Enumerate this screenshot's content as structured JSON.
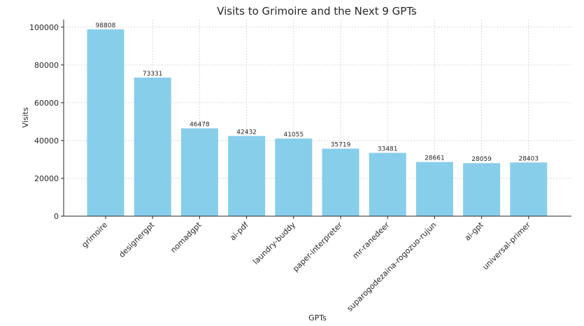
{
  "chart_data": {
    "type": "bar",
    "title": "Visits to Grimoire and the Next 9 GPTs",
    "xlabel": "GPTs",
    "ylabel": "Visits",
    "categories": [
      "grimoire",
      "designergpt",
      "nomadgpt",
      "ai-pdf",
      "laundry-buddy",
      "paper-interpreter",
      "mr-ranedeer",
      "suparogodezaina-rogozuo-rujun",
      "ai-gpt",
      "universal-primer"
    ],
    "values": [
      98808,
      73331,
      46478,
      42432,
      41055,
      35719,
      33481,
      28661,
      28059,
      28403
    ],
    "ylim": [
      0,
      104000
    ],
    "yticks": [
      0,
      20000,
      40000,
      60000,
      80000,
      100000
    ],
    "grid": true,
    "bar_color": "#87ceeb"
  }
}
